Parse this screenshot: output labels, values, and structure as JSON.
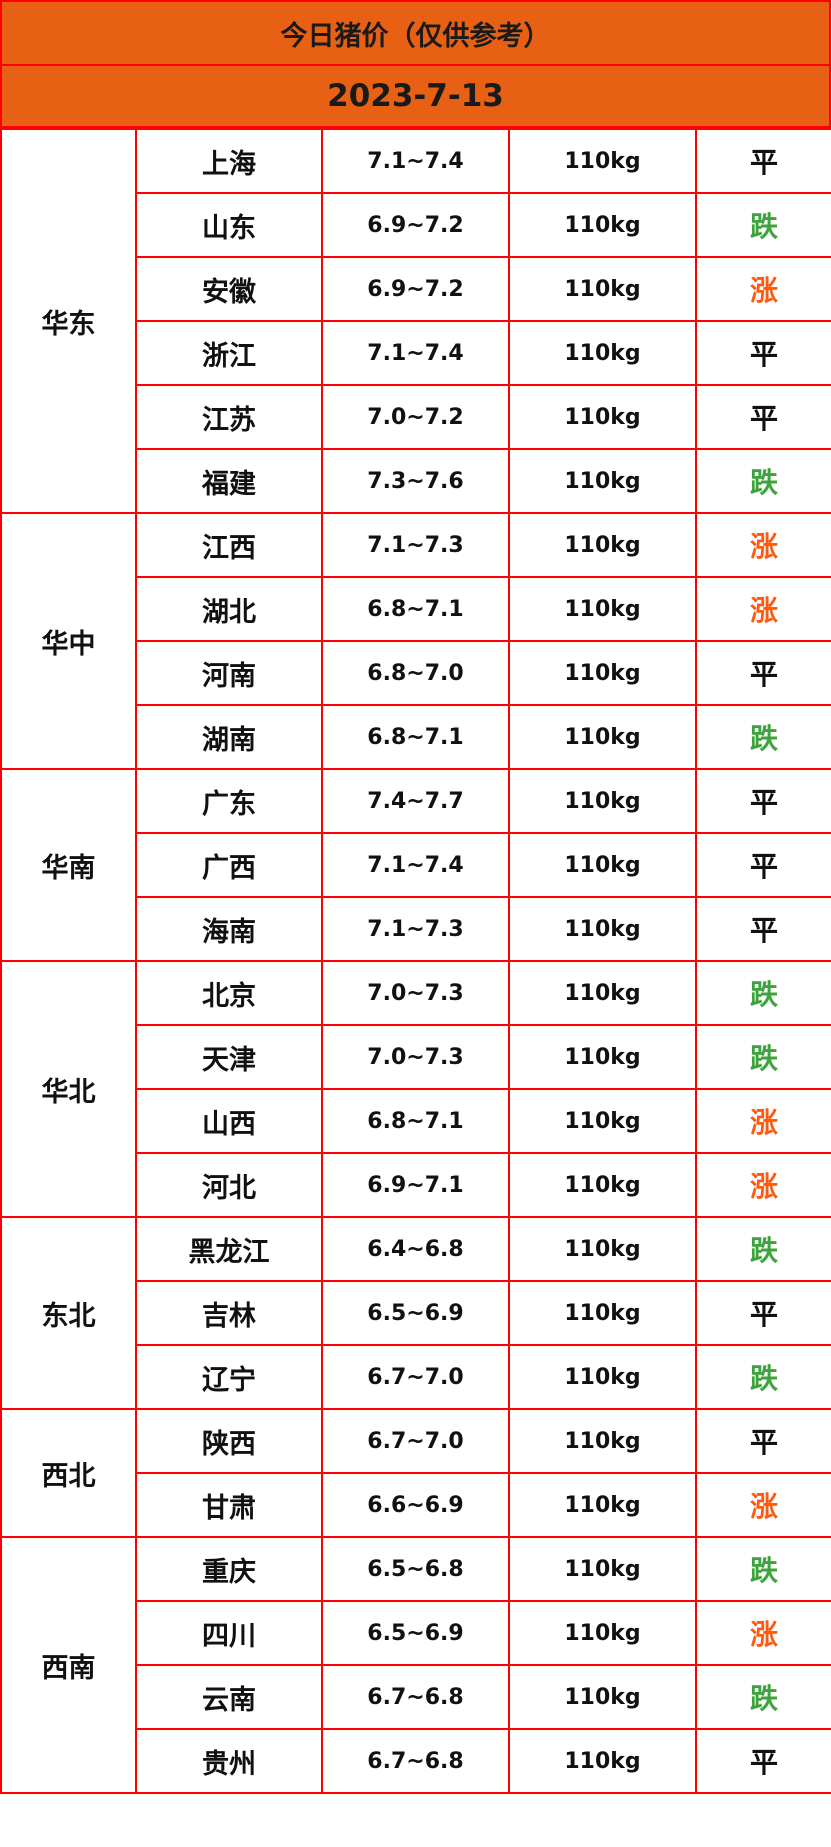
{
  "title": "今日猪价（仅供参考）",
  "date": "2023-7-13",
  "colors": {
    "header_bg": "#E86014",
    "border": "#FF0000",
    "rise": "#FF5A12",
    "fall": "#3DA33D",
    "flat": "#111111"
  },
  "regions": [
    {
      "name": "华东",
      "rows": [
        {
          "province": "上海",
          "price": "7.1~7.4",
          "weight": "110kg",
          "trend": "平"
        },
        {
          "province": "山东",
          "price": "6.9~7.2",
          "weight": "110kg",
          "trend": "跌"
        },
        {
          "province": "安徽",
          "price": "6.9~7.2",
          "weight": "110kg",
          "trend": "涨"
        },
        {
          "province": "浙江",
          "price": "7.1~7.4",
          "weight": "110kg",
          "trend": "平"
        },
        {
          "province": "江苏",
          "price": "7.0~7.2",
          "weight": "110kg",
          "trend": "平"
        },
        {
          "province": "福建",
          "price": "7.3~7.6",
          "weight": "110kg",
          "trend": "跌"
        }
      ]
    },
    {
      "name": "华中",
      "rows": [
        {
          "province": "江西",
          "price": "7.1~7.3",
          "weight": "110kg",
          "trend": "涨"
        },
        {
          "province": "湖北",
          "price": "6.8~7.1",
          "weight": "110kg",
          "trend": "涨"
        },
        {
          "province": "河南",
          "price": "6.8~7.0",
          "weight": "110kg",
          "trend": "平"
        },
        {
          "province": "湖南",
          "price": "6.8~7.1",
          "weight": "110kg",
          "trend": "跌"
        }
      ]
    },
    {
      "name": "华南",
      "rows": [
        {
          "province": "广东",
          "price": "7.4~7.7",
          "weight": "110kg",
          "trend": "平"
        },
        {
          "province": "广西",
          "price": "7.1~7.4",
          "weight": "110kg",
          "trend": "平"
        },
        {
          "province": "海南",
          "price": "7.1~7.3",
          "weight": "110kg",
          "trend": "平"
        }
      ]
    },
    {
      "name": "华北",
      "rows": [
        {
          "province": "北京",
          "price": "7.0~7.3",
          "weight": "110kg",
          "trend": "跌"
        },
        {
          "province": "天津",
          "price": "7.0~7.3",
          "weight": "110kg",
          "trend": "跌"
        },
        {
          "province": "山西",
          "price": "6.8~7.1",
          "weight": "110kg",
          "trend": "涨"
        },
        {
          "province": "河北",
          "price": "6.9~7.1",
          "weight": "110kg",
          "trend": "涨"
        }
      ]
    },
    {
      "name": "东北",
      "rows": [
        {
          "province": "黑龙江",
          "price": "6.4~6.8",
          "weight": "110kg",
          "trend": "跌"
        },
        {
          "province": "吉林",
          "price": "6.5~6.9",
          "weight": "110kg",
          "trend": "平"
        },
        {
          "province": "辽宁",
          "price": "6.7~7.0",
          "weight": "110kg",
          "trend": "跌"
        }
      ]
    },
    {
      "name": "西北",
      "rows": [
        {
          "province": "陕西",
          "price": "6.7~7.0",
          "weight": "110kg",
          "trend": "平"
        },
        {
          "province": "甘肃",
          "price": "6.6~6.9",
          "weight": "110kg",
          "trend": "涨"
        }
      ]
    },
    {
      "name": "西南",
      "rows": [
        {
          "province": "重庆",
          "price": "6.5~6.8",
          "weight": "110kg",
          "trend": "跌"
        },
        {
          "province": "四川",
          "price": "6.5~6.9",
          "weight": "110kg",
          "trend": "涨"
        },
        {
          "province": "云南",
          "price": "6.7~6.8",
          "weight": "110kg",
          "trend": "跌"
        },
        {
          "province": "贵州",
          "price": "6.7~6.8",
          "weight": "110kg",
          "trend": "平"
        }
      ]
    }
  ]
}
